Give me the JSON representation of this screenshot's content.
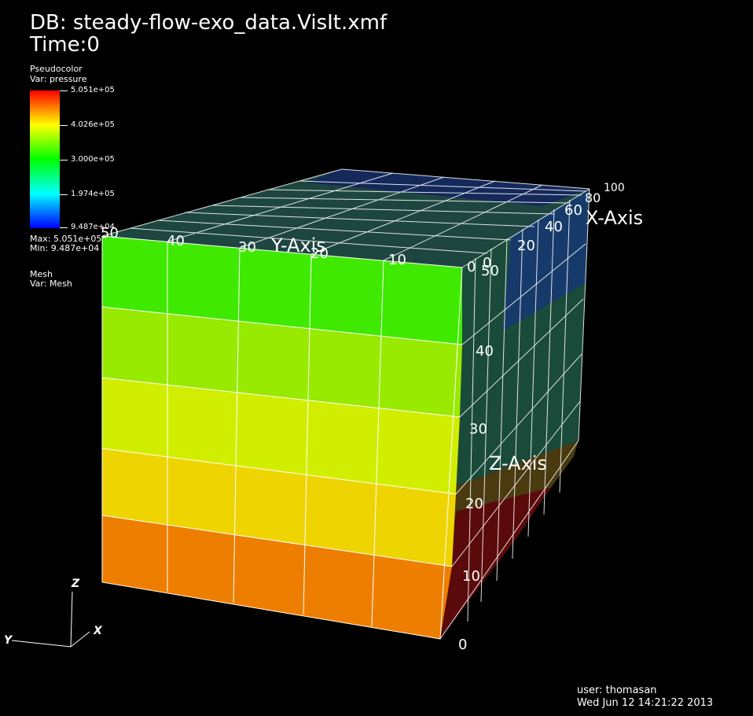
{
  "header": {
    "db_title": "DB: steady-flow-exo_data.VisIt.xmf",
    "time_label": "Time:0"
  },
  "legend": {
    "plot1_type": "Pseudocolor",
    "plot1_var": "Var: pressure",
    "ticks": [
      "5.051e+05",
      "4.026e+05",
      "3.000e+05",
      "1.974e+05",
      "9.487e+04"
    ],
    "max_label": "Max:  5.051e+05",
    "min_label": "Min:  9.487e+04",
    "plot2_type": "Mesh",
    "plot2_var": "Var: Mesh"
  },
  "axes": {
    "x_title": "X-Axis",
    "y_title": "Y-Axis",
    "z_title": "Z-Axis",
    "y_ticks": [
      "50",
      "40",
      "30",
      "20",
      "10",
      "0"
    ],
    "x_ticks": [
      "0",
      "20",
      "40",
      "60",
      "80",
      "100"
    ],
    "z_ticks": [
      "0",
      "10",
      "20",
      "30",
      "40",
      "50"
    ],
    "triad_x": "X",
    "triad_y": "Y",
    "triad_z": "Z"
  },
  "footer": {
    "user": "user: thomasan",
    "date": "Wed Jun 12 14:21:22 2013"
  },
  "colors": {
    "band1": "#3fea00",
    "band2": "#97ea00",
    "band3": "#d2ee00",
    "band4": "#eed400",
    "band5": "#ee7e00"
  }
}
